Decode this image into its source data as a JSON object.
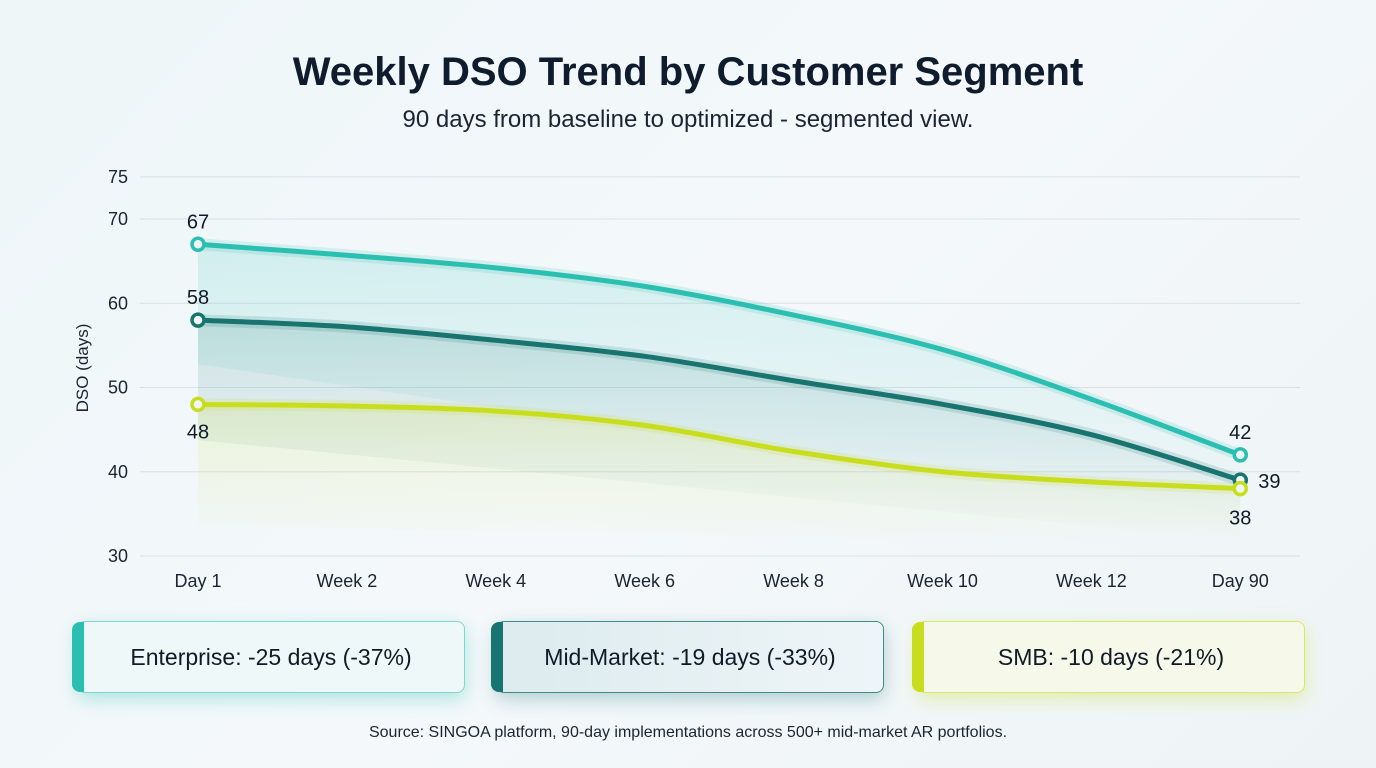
{
  "chart_data": {
    "type": "line",
    "title": "Weekly DSO Trend by Customer Segment",
    "subtitle": "90 days from baseline to optimized - segmented view.",
    "xlabel": "",
    "ylabel": "DSO (days)",
    "ylim": [
      30,
      75
    ],
    "yticks": [
      30,
      40,
      50,
      60,
      70,
      75
    ],
    "grid": true,
    "categories": [
      "Day 1",
      "Week 2",
      "Week 4",
      "Week 6",
      "Week 8",
      "Week 10",
      "Week 12",
      "Day 90"
    ],
    "series": [
      {
        "name": "Enterprise",
        "color": "#2bbfb1",
        "values": [
          67,
          65.7,
          64.2,
          62,
          58.6,
          54.5,
          48.6,
          42
        ],
        "start_label": "67",
        "end_label": "42"
      },
      {
        "name": "Mid-Market",
        "color": "#17746f",
        "values": [
          58,
          57.2,
          55.6,
          53.7,
          50.8,
          48,
          44.4,
          39
        ],
        "start_label": "58",
        "end_label": "39"
      },
      {
        "name": "SMB",
        "color": "#c9dd1f",
        "values": [
          48,
          47.8,
          47.2,
          45.5,
          42.4,
          40,
          38.8,
          38
        ],
        "start_label": "48",
        "end_label": "38"
      }
    ]
  },
  "summary_cards": [
    {
      "label": "Enterprise: -25 days (-37%)",
      "color": "#2bbfb1"
    },
    {
      "label": "Mid-Market: -19 days (-33%)",
      "color": "#17746f"
    },
    {
      "label": "SMB: -10 days (-21%)",
      "color": "#c9dd1f"
    }
  ],
  "source": "Source: SINGOA platform, 90-day implementations across 500+ mid-market AR portfolios."
}
